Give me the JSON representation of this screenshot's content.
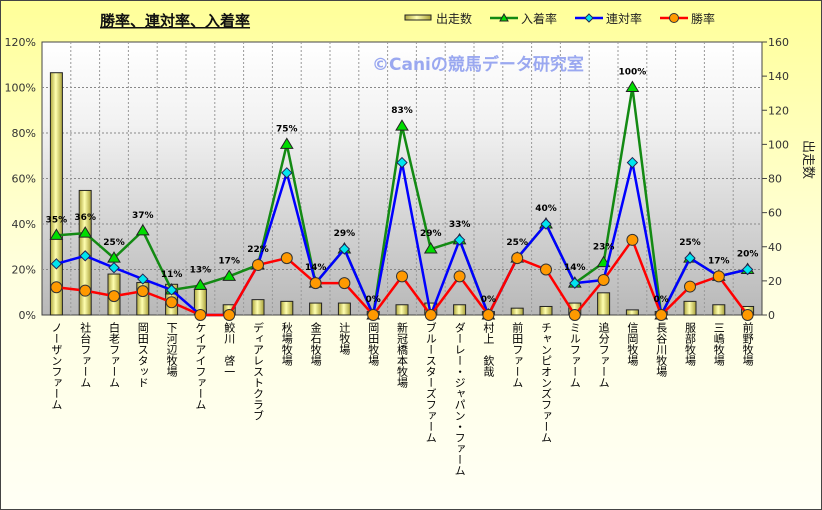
{
  "chart_data": {
    "type": "bar+line",
    "title": "勝率、連対率、入着率",
    "watermark": "©Caniの競馬データ研究室",
    "y2label": "出走数",
    "ylim": [
      0,
      120
    ],
    "y2lim": [
      0,
      160
    ],
    "yticks": [
      "0%",
      "20%",
      "40%",
      "60%",
      "80%",
      "100%",
      "120%"
    ],
    "y2ticks": [
      "0",
      "20",
      "40",
      "60",
      "80",
      "100",
      "120",
      "140",
      "160"
    ],
    "grid": true,
    "legend": "top-right",
    "categories": [
      "ノーザンファーム",
      "社台ファーム",
      "白老ファーム",
      "岡田スタッド",
      "下河辺牧場",
      "ケイアイファーム",
      "鮫川　啓一",
      "ディアレストクラブ",
      "秋場牧場",
      "金石牧場",
      "辻牧場",
      "岡田牧場",
      "新冠橋本牧場",
      "ブルースターズファーム",
      "ダーレー・ジャパン・ファーム",
      "村上　欽哉",
      "前田ファーム",
      "チャンピオンズファーム",
      "ミルファーム",
      "追分ファーム",
      "信岡牧場",
      "長谷川牧場",
      "服部牧場",
      "三嶋牧場",
      "前野牧場"
    ],
    "series": [
      {
        "name": "出走数",
        "type": "bar",
        "axis": "right",
        "color": "#f0f090",
        "values": [
          142,
          73,
          24,
          19,
          18,
          15,
          6,
          9,
          8,
          7,
          7,
          2,
          6,
          7,
          6,
          2,
          4,
          5,
          7,
          13,
          3,
          2,
          8,
          6,
          5
        ]
      },
      {
        "name": "入着率",
        "type": "line",
        "axis": "left",
        "color": "#138a13",
        "marker": "#00dd00",
        "values": [
          35,
          36,
          25,
          37,
          11,
          13,
          17,
          22,
          75,
          14,
          29,
          0,
          83,
          29,
          33,
          0,
          25,
          40,
          14,
          23,
          100,
          0,
          25,
          17,
          20
        ]
      },
      {
        "name": "連対率",
        "type": "line",
        "axis": "left",
        "color": "#0000ff",
        "marker": "#00e5ee",
        "values": [
          22.5,
          26,
          20.8,
          15.8,
          11,
          0,
          0,
          22,
          62.5,
          14,
          29,
          0,
          67,
          0,
          33,
          0,
          25,
          40,
          14,
          15.4,
          67,
          0,
          25,
          17,
          20
        ]
      },
      {
        "name": "勝率",
        "type": "line",
        "axis": "left",
        "color": "#ff0000",
        "marker": "#ff9900",
        "values": [
          12.2,
          10.7,
          8.3,
          10.5,
          5.6,
          0,
          0,
          22,
          25,
          14,
          14,
          0,
          17,
          0,
          17,
          0,
          25,
          20,
          0,
          15.4,
          33,
          0,
          12.5,
          17,
          0
        ]
      }
    ],
    "data_labels": [
      "35%",
      "36%",
      "25%",
      "37%",
      "11%",
      "13%",
      "17%",
      "22%",
      "75%",
      "14%",
      "29%",
      "0%",
      "83%",
      "29%",
      "33%",
      "0%",
      "25%",
      "40%",
      "14%",
      "23%",
      "100%",
      "0%",
      "25%",
      "17%",
      "20%"
    ]
  }
}
